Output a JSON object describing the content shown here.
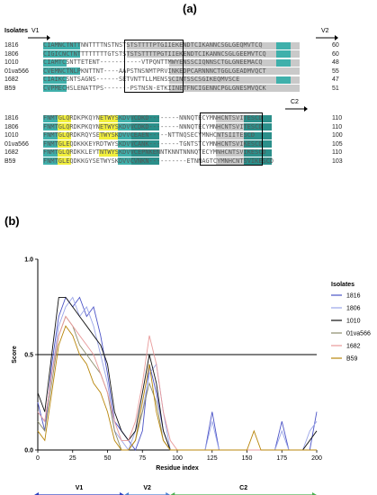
{
  "panels": {
    "a": "(a)",
    "b": "(b)"
  },
  "alignment": {
    "isolates_title": "Isolates",
    "block1": {
      "regions": [
        "V1",
        "V2"
      ],
      "rows": [
        {
          "name": "1816",
          "seq": "CIAMNCTNTTNNTTTTNSTNSTSTSTTTTPTGIIEKENDTCIKANNCSGLGEQMVTCQ",
          "num": "60"
        },
        {
          "name": "1806",
          "seq": "CIGICNCTNTTTTTTTTGTSTSTSTSTTTTPGTIIEKENDTCIKANNCSGLGEEMVTCQ",
          "num": "60"
        },
        {
          "name": "1010",
          "seq": "CIAMTCSNTTETENT-----------VTPQNTTMWYENSSCIQNNSCTGLGNEEMACQ",
          "num": "48"
        },
        {
          "name": "01va566",
          "seq": "CVEMNCTNLPKNTTNT----AAPSTNSNMTPRVINKEDPCARNNNCTGGLGEADMVQCT",
          "num": "55"
        },
        {
          "name": "1682",
          "seq": "CIAIKCSNTSAGNS------SETVNTTLLMENSSCINTSSCSGIKEQMVSCE",
          "num": "47"
        },
        {
          "name": "B59",
          "seq": "CVPMECHSLENATTPS-------PSTNSN-ETKIINETFNCIGENNCPGLGNESMVQCK",
          "num": "51"
        }
      ]
    },
    "block2": {
      "regions": [
        "C2"
      ],
      "rows": [
        {
          "name": "1816",
          "seq": "FNMTGLQRDKPKQYNETWYSKDVVCDKD--------NNNQTECYMNHCNTSVITESCD",
          "num": "110"
        },
        {
          "name": "1806",
          "seq": "FNMTGLQRDKPKQYNETWYSKDVVCDKD--------NNNQTECYMNHCNTSVITESCD",
          "num": "110"
        },
        {
          "name": "1010",
          "seq": "FNMTGLQRDKRQYSETWYSKDVVCEAEN-----NTTNQSECYMNHCNTSIITESCD",
          "num": "100"
        },
        {
          "name": "01va566",
          "seq": "FNMTGLEQDKKKEYRDTWYSKDVVCANK--------TGNTSTCYMNHCNTSVIKESCD",
          "num": "105"
        },
        {
          "name": "1682",
          "seq": "FNMTGLQRDKKLEYTNTWYSKDVVCEPNKENNTKNNTNNNQTECYMNHCNTSVIKESCD",
          "num": "110"
        },
        {
          "name": "B59",
          "seq": "FNMTGLEQDKKGYSETWYSKDVVCVNKN----------ETNNAGTCYMNHCNTSVIKESCD",
          "num": "103"
        }
      ]
    }
  },
  "chart_data": {
    "type": "line",
    "title": "",
    "xlabel": "Residue index",
    "ylabel": "Score",
    "xlim": [
      0,
      200
    ],
    "ylim": [
      0,
      1.0
    ],
    "xticks": [
      0,
      25,
      50,
      75,
      100,
      125,
      150,
      175,
      200
    ],
    "yticks": [
      0.0,
      0.5,
      1.0
    ],
    "threshold": 0.5,
    "legend_title": "Isolates",
    "legend_position": "right",
    "series": [
      {
        "name": "1816",
        "color": "#4a52c6",
        "x": [
          0,
          5,
          10,
          15,
          20,
          25,
          30,
          35,
          40,
          45,
          50,
          55,
          60,
          65,
          70,
          75,
          80,
          85,
          90,
          95,
          100,
          110,
          120,
          125,
          130,
          140,
          150,
          160,
          170,
          175,
          180,
          190,
          195,
          200
        ],
        "y": [
          0.25,
          0.1,
          0.45,
          0.7,
          0.8,
          0.75,
          0.8,
          0.7,
          0.75,
          0.6,
          0.4,
          0.15,
          0.1,
          0.05,
          0.0,
          0.1,
          0.45,
          0.3,
          0.1,
          0.0,
          0.0,
          0.0,
          0.0,
          0.2,
          0.0,
          0.0,
          0.0,
          0.0,
          0.0,
          0.15,
          0.0,
          0.0,
          0.0,
          0.2
        ]
      },
      {
        "name": "1806",
        "color": "#9aa5e8",
        "x": [
          0,
          5,
          10,
          15,
          20,
          25,
          30,
          35,
          40,
          45,
          50,
          55,
          60,
          65,
          70,
          75,
          80,
          85,
          90,
          95,
          100,
          110,
          120,
          125,
          130,
          140,
          150,
          160,
          170,
          175,
          180,
          190,
          195,
          200
        ],
        "y": [
          0.2,
          0.15,
          0.4,
          0.65,
          0.75,
          0.8,
          0.7,
          0.75,
          0.65,
          0.5,
          0.35,
          0.1,
          0.05,
          0.0,
          0.1,
          0.2,
          0.4,
          0.45,
          0.2,
          0.0,
          0.0,
          0.0,
          0.0,
          0.15,
          0.0,
          0.0,
          0.0,
          0.0,
          0.0,
          0.1,
          0.0,
          0.0,
          0.1,
          0.15
        ]
      },
      {
        "name": "1010",
        "color": "#111111",
        "x": [
          0,
          5,
          10,
          15,
          20,
          25,
          30,
          35,
          40,
          45,
          50,
          55,
          60,
          65,
          70,
          75,
          80,
          85,
          90,
          95,
          100,
          110,
          120,
          130,
          140,
          150,
          160,
          170,
          180,
          190,
          200
        ],
        "y": [
          0.3,
          0.2,
          0.5,
          0.8,
          0.8,
          0.75,
          0.7,
          0.65,
          0.6,
          0.55,
          0.45,
          0.2,
          0.1,
          0.05,
          0.1,
          0.3,
          0.5,
          0.35,
          0.1,
          0.0,
          0.0,
          0.0,
          0.0,
          0.0,
          0.0,
          0.0,
          0.0,
          0.0,
          0.0,
          0.0,
          0.1
        ]
      },
      {
        "name": "01va566",
        "color": "#8c8c6a",
        "x": [
          0,
          5,
          10,
          15,
          20,
          25,
          30,
          35,
          40,
          45,
          50,
          55,
          60,
          65,
          70,
          75,
          80,
          85,
          90,
          95,
          100,
          120,
          140,
          160,
          180,
          200
        ],
        "y": [
          0.15,
          0.1,
          0.35,
          0.6,
          0.7,
          0.65,
          0.55,
          0.5,
          0.45,
          0.4,
          0.3,
          0.1,
          0.0,
          0.0,
          0.05,
          0.2,
          0.35,
          0.25,
          0.05,
          0.0,
          0.0,
          0.0,
          0.0,
          0.0,
          0.0,
          0.0
        ]
      },
      {
        "name": "1682",
        "color": "#e89a9a",
        "x": [
          0,
          5,
          10,
          15,
          20,
          25,
          30,
          35,
          40,
          45,
          50,
          55,
          60,
          65,
          70,
          75,
          80,
          85,
          90,
          95,
          100,
          120,
          140,
          160,
          180,
          200
        ],
        "y": [
          0.2,
          0.15,
          0.4,
          0.6,
          0.7,
          0.65,
          0.6,
          0.55,
          0.5,
          0.4,
          0.3,
          0.15,
          0.05,
          0.05,
          0.15,
          0.35,
          0.6,
          0.45,
          0.2,
          0.05,
          0.0,
          0.0,
          0.0,
          0.0,
          0.0,
          0.0
        ]
      },
      {
        "name": "B59",
        "color": "#b8860b",
        "x": [
          0,
          5,
          10,
          15,
          20,
          25,
          30,
          35,
          40,
          45,
          50,
          55,
          60,
          65,
          70,
          75,
          80,
          85,
          90,
          95,
          100,
          120,
          150,
          155,
          160,
          180,
          200
        ],
        "y": [
          0.1,
          0.05,
          0.3,
          0.55,
          0.65,
          0.6,
          0.5,
          0.45,
          0.35,
          0.3,
          0.2,
          0.05,
          0.0,
          0.0,
          0.05,
          0.25,
          0.45,
          0.2,
          0.05,
          0.0,
          0.0,
          0.0,
          0.0,
          0.1,
          0.0,
          0.0,
          0.0
        ]
      }
    ],
    "regions": [
      {
        "label": "V1",
        "from": 0,
        "to": 62,
        "color": "#2a3fbf"
      },
      {
        "label": "V2",
        "from": 62,
        "to": 95,
        "color": "#4a7fd0"
      },
      {
        "label": "C2",
        "from": 95,
        "to": 200,
        "color": "#4caf50"
      }
    ]
  }
}
